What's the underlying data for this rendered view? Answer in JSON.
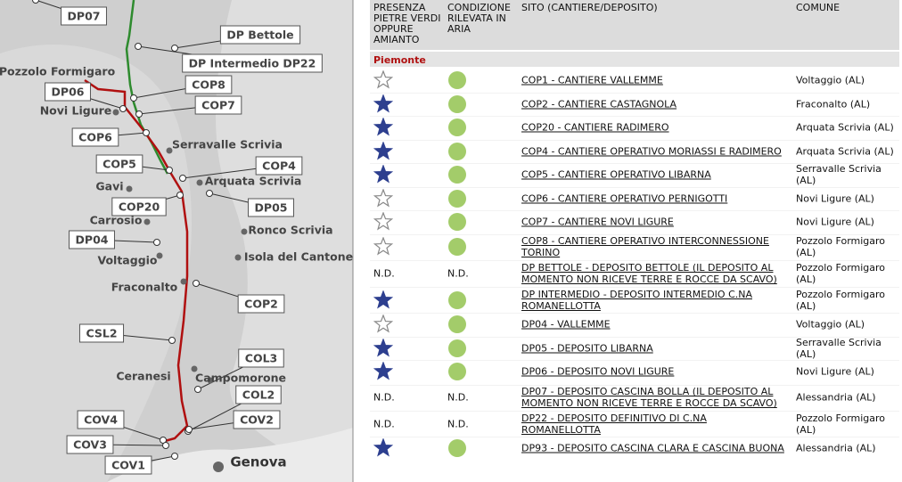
{
  "map": {
    "boxed_labels": [
      "DP07",
      "DP Bettole",
      "DP Intermedio DP22",
      "COP8",
      "DP06",
      "COP7",
      "COP6",
      "COP5",
      "COP4",
      "COP20",
      "DP05",
      "DP04",
      "COP2",
      "CSL2",
      "COL3",
      "COL2",
      "COV4",
      "COV2",
      "COV3",
      "COV1"
    ],
    "towns": [
      "Pozzolo Formigaro",
      "Novi Ligure",
      "Serravalle Scrivia",
      "Arquata Scrivia",
      "Gavi",
      "Carrosio",
      "Ronco Scrivia",
      "Isola del Cantone",
      "Voltaggio",
      "Fraconalto",
      "Ceranesi",
      "Campomorone",
      "Genova"
    ]
  },
  "table": {
    "headers": [
      "PRESENZA PIETRE VERDI OPPURE AMIANTO",
      "CONDIZIONE RILEVATA IN ARIA",
      "SITO (CANTIERE/DEPOSITO)",
      "COMUNE"
    ],
    "region": "Piemonte",
    "rows": [
      [
        {
          "icon": "empty"
        },
        {
          "icon": "green"
        },
        "COP1 - CANTIERE VALLEMME",
        "Voltaggio (AL)"
      ],
      [
        {
          "icon": "filled"
        },
        {
          "icon": "green"
        },
        "COP2 - CANTIERE CASTAGNOLA",
        "Fraconalto (AL)"
      ],
      [
        {
          "icon": "filled"
        },
        {
          "icon": "green"
        },
        "COP20 - CANTIERE RADIMERO",
        "Arquata Scrivia (AL)"
      ],
      [
        {
          "icon": "filled"
        },
        {
          "icon": "green"
        },
        "COP4 - CANTIERE OPERATIVO MORIASSI E RADIMERO",
        "Arquata Scrivia (AL)"
      ],
      [
        {
          "icon": "filled"
        },
        {
          "icon": "green"
        },
        "COP5 - CANTIERE OPERATIVO LIBARNA",
        "Serravalle Scrivia (AL)"
      ],
      [
        {
          "icon": "empty"
        },
        {
          "icon": "green"
        },
        "COP6 - CANTIERE OPERATIVO PERNIGOTTI",
        "Novi Ligure (AL)"
      ],
      [
        {
          "icon": "empty"
        },
        {
          "icon": "green"
        },
        "COP7 - CANTIERE NOVI LIGURE",
        "Novi Ligure (AL)"
      ],
      [
        {
          "icon": "empty"
        },
        {
          "icon": "green"
        },
        "COP8 - CANTIERE OPERATIVO INTERCONNESSIONE TORINO",
        "Pozzolo Formigaro (AL)"
      ],
      [
        "N.D.",
        "N.D.",
        "DP BETTOLE - DEPOSITO BETTOLE (IL DEPOSITO AL MOMENTO NON RICEVE TERRE E ROCCE DA SCAVO)",
        "Pozzolo Formigaro (AL)"
      ],
      [
        {
          "icon": "filled"
        },
        {
          "icon": "green"
        },
        "DP INTERMEDIO - DEPOSITO INTERMEDIO C.NA ROMANELLOTTA",
        "Pozzolo Formigaro (AL)"
      ],
      [
        {
          "icon": "empty"
        },
        {
          "icon": "green"
        },
        "DP04 - VALLEMME",
        "Voltaggio (AL)"
      ],
      [
        {
          "icon": "filled"
        },
        {
          "icon": "green"
        },
        "DP05 - DEPOSITO LIBARNA",
        "Serravalle Scrivia (AL)"
      ],
      [
        {
          "icon": "filled"
        },
        {
          "icon": "green"
        },
        "DP06 - DEPOSITO NOVI LIGURE",
        "Novi Ligure (AL)"
      ],
      [
        "N.D.",
        "N.D.",
        "DP07 - DEPOSITO CASCINA BOLLA (IL DEPOSITO AL MOMENTO NON RICEVE TERRE E ROCCE DA SCAVO)",
        "Alessandria (AL)"
      ],
      [
        "N.D.",
        "N.D.",
        "DP22 - DEPOSITO DEFINITIVO DI C.NA ROMANELLOTTA",
        "Pozzolo Formigaro (AL)"
      ],
      [
        {
          "icon": "filled"
        },
        {
          "icon": "green"
        },
        "DP93 - DEPOSITO CASCINA CLARA E CASCINA BUONA",
        "Alessandria (AL)"
      ]
    ]
  }
}
